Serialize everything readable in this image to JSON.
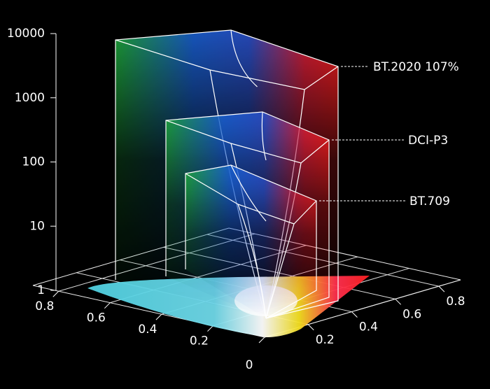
{
  "chart_data": {
    "type": "color-volume",
    "ylim": [
      1,
      10000
    ],
    "yticks": [
      1,
      10,
      100,
      1000,
      10000
    ],
    "log_y": true,
    "xlim": [
      0,
      0.9
    ],
    "xticks": [
      0,
      0.2,
      0.4,
      0.6,
      0.8
    ],
    "zlim": [
      0,
      0.9
    ],
    "zticks": [
      0.2,
      0.4,
      0.6,
      0.8
    ],
    "grid": true,
    "series": [
      {
        "name": "BT.2020 107%",
        "values": [
          10000
        ]
      },
      {
        "name": "DCI-P3",
        "values": [
          1000
        ]
      },
      {
        "name": "BT.709",
        "values": [
          100
        ]
      }
    ]
  }
}
